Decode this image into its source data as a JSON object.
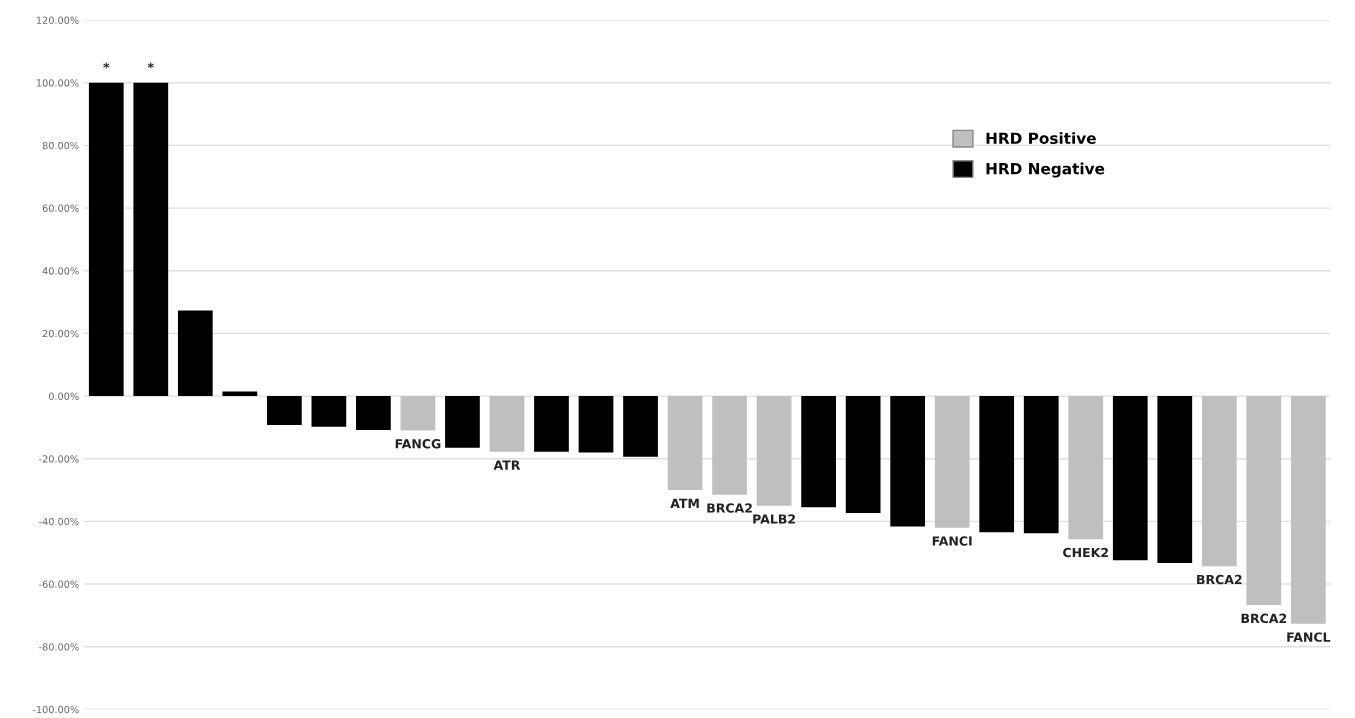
{
  "chart_data": {
    "type": "bar",
    "stacked": true,
    "categories": [
      null,
      null,
      null,
      null,
      null,
      null,
      null,
      null,
      null,
      null,
      null,
      null,
      null,
      null,
      null,
      null,
      null,
      null,
      null,
      null,
      null,
      null,
      null,
      null,
      null,
      null,
      null,
      null
    ],
    "series": [
      {
        "name": "HRD Positive",
        "color": "#bfbfbf",
        "values": [
          null,
          null,
          null,
          null,
          null,
          null,
          null,
          -11,
          null,
          -17.8,
          null,
          null,
          null,
          -30,
          -31.5,
          -35,
          null,
          null,
          null,
          -42,
          null,
          null,
          -45.7,
          null,
          null,
          -54.3,
          -66.7,
          -72.7
        ],
        "value_labels": [
          null,
          null,
          null,
          null,
          null,
          null,
          null,
          "FANCG",
          null,
          "ATR",
          null,
          null,
          null,
          "ATM",
          "BRCA2",
          "PALB2",
          null,
          null,
          null,
          "FANCI",
          null,
          null,
          "CHEK2",
          null,
          null,
          "BRCA2",
          "BRCA2",
          "FANCL"
        ]
      },
      {
        "name": "HRD Negative",
        "color": "#000000",
        "values": [
          100,
          100,
          27.3,
          1.5,
          -9.2,
          -9.8,
          -10.8,
          null,
          -16.5,
          null,
          -17.8,
          -18,
          -19.4,
          null,
          null,
          null,
          -35.5,
          -37.3,
          -41.6,
          null,
          -43.5,
          -43.8,
          null,
          -52.4,
          -53.3,
          null,
          null,
          null
        ],
        "value_labels": [
          "*",
          "*",
          null,
          null,
          null,
          null,
          null,
          null,
          null,
          null,
          null,
          null,
          null,
          null,
          null,
          null,
          null,
          null,
          null,
          null,
          null,
          null,
          null,
          null,
          null,
          null,
          null,
          null
        ]
      }
    ],
    "ylim": [
      -100,
      120
    ],
    "yticks": [
      {
        "value": -100,
        "label": "-100.00%"
      },
      {
        "value": -80,
        "label": "-80.00%"
      },
      {
        "value": -60,
        "label": "-60.00%"
      },
      {
        "value": -40,
        "label": "-40.00%"
      },
      {
        "value": -20,
        "label": "-20.00%"
      },
      {
        "value": 0,
        "label": "0.00%"
      },
      {
        "value": 20,
        "label": "20.00%"
      },
      {
        "value": 40,
        "label": "40.00%"
      },
      {
        "value": 60,
        "label": "60.00%"
      },
      {
        "value": 80,
        "label": "80.00%"
      },
      {
        "value": 100,
        "label": "100.00%"
      },
      {
        "value": 120,
        "label": "120.00%"
      }
    ],
    "grid": "y",
    "legend": "top right"
  }
}
